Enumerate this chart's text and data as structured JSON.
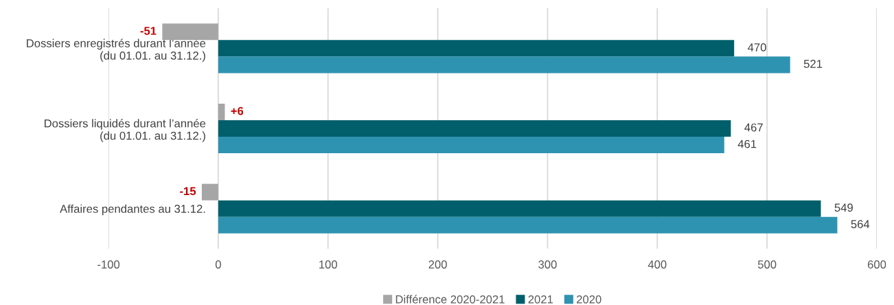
{
  "chart_data": {
    "type": "bar",
    "orientation": "horizontal",
    "categories": [
      "Dossiers enregistrés durant l’année\n(du 01.01. au 31.12.)",
      "Dossiers liquidés durant l’année\n(du 01.01. au 31.12.)",
      "Affaires pendantes au 31.12."
    ],
    "series": [
      {
        "name": "Différence 2020-2021",
        "color": "#a6a6a6",
        "values": [
          -51,
          6,
          -15
        ],
        "value_labels": [
          "-51",
          "+6",
          "-15"
        ]
      },
      {
        "name": "2021",
        "color": "#005f6b",
        "values": [
          470,
          467,
          549
        ],
        "value_labels": [
          "470",
          "467",
          "549"
        ]
      },
      {
        "name": "2020",
        "color": "#2e93b0",
        "values": [
          521,
          461,
          564
        ],
        "value_labels": [
          "521",
          "461",
          "564"
        ]
      }
    ],
    "xlim": [
      -100,
      600
    ],
    "xticks": [
      -100,
      0,
      100,
      200,
      300,
      400,
      500,
      600
    ],
    "grid": "x",
    "legend": "bottom"
  }
}
